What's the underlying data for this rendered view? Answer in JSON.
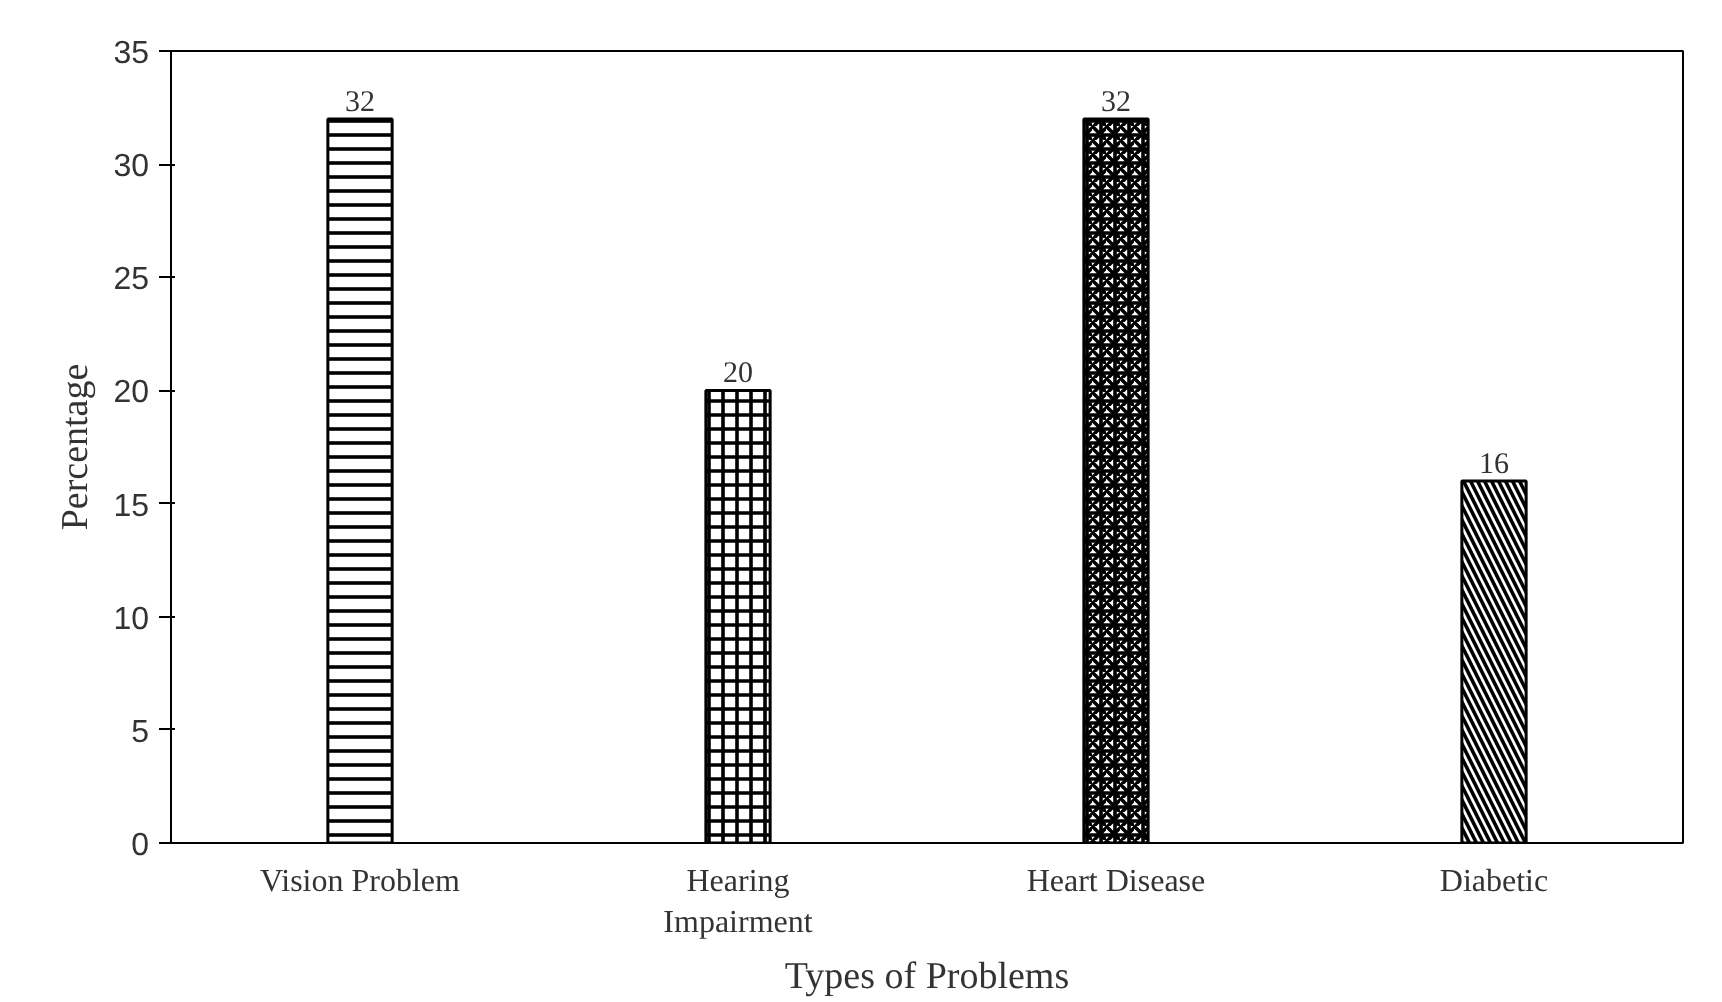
{
  "chart_data": {
    "type": "bar",
    "xlabel": "Types of Problems",
    "ylabel": "Percentage",
    "categories": [
      "Vision Problem",
      "Hearing Impairment",
      "Heart Disease",
      "Diabetic"
    ],
    "values": [
      32,
      20,
      32,
      16
    ],
    "color": "#000000",
    "ylim": [
      0,
      35
    ],
    "yticks": [
      0,
      5,
      10,
      15,
      20,
      25,
      30,
      35
    ],
    "grid": false,
    "data_labels": true
  }
}
